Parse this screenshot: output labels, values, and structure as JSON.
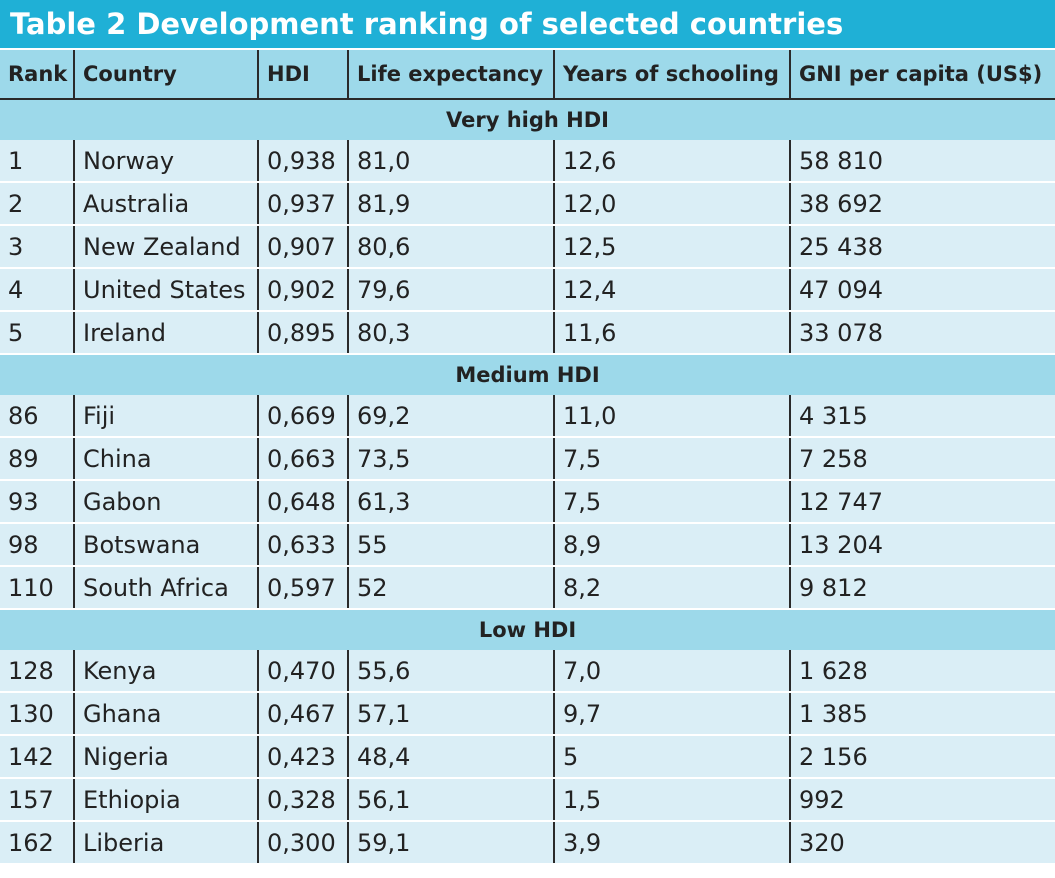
{
  "title": "Table 2 Development ranking of selected countries",
  "columns": [
    "Rank",
    "Country",
    "HDI",
    "Life expectancy",
    "Years of schooling",
    "GNI per capita (US$)"
  ],
  "groups": [
    {
      "label": "Very high HDI",
      "rows": [
        [
          "1",
          "Norway",
          "0,938",
          "81,0",
          "12,6",
          "58 810"
        ],
        [
          "2",
          "Australia",
          "0,937",
          "81,9",
          "12,0",
          "38 692"
        ],
        [
          "3",
          "New Zealand",
          "0,907",
          "80,6",
          "12,5",
          "25 438"
        ],
        [
          "4",
          "United States",
          "0,902",
          "79,6",
          "12,4",
          "47 094"
        ],
        [
          "5",
          "Ireland",
          "0,895",
          "80,3",
          "11,6",
          "33 078"
        ]
      ]
    },
    {
      "label": "Medium HDI",
      "rows": [
        [
          "86",
          "Fiji",
          "0,669",
          "69,2",
          "11,0",
          "4 315"
        ],
        [
          "89",
          "China",
          "0,663",
          "73,5",
          "7,5",
          "7 258"
        ],
        [
          "93",
          "Gabon",
          "0,648",
          "61,3",
          "7,5",
          "12 747"
        ],
        [
          "98",
          "Botswana",
          "0,633",
          "55",
          "8,9",
          "13 204"
        ],
        [
          "110",
          "South Africa",
          "0,597",
          "52",
          "8,2",
          "9 812"
        ]
      ]
    },
    {
      "label": "Low HDI",
      "rows": [
        [
          "128",
          "Kenya",
          "0,470",
          "55,6",
          "7,0",
          "1 628"
        ],
        [
          "130",
          "Ghana",
          "0,467",
          "57,1",
          "9,7",
          "1 385"
        ],
        [
          "142",
          "Nigeria",
          "0,423",
          "48,4",
          "5",
          "2 156"
        ],
        [
          "157",
          "Ethiopia",
          "0,328",
          "56,1",
          "1,5",
          "992"
        ],
        [
          "162",
          "Liberia",
          "0,300",
          "59,1",
          "3,9",
          "320"
        ]
      ]
    }
  ]
}
